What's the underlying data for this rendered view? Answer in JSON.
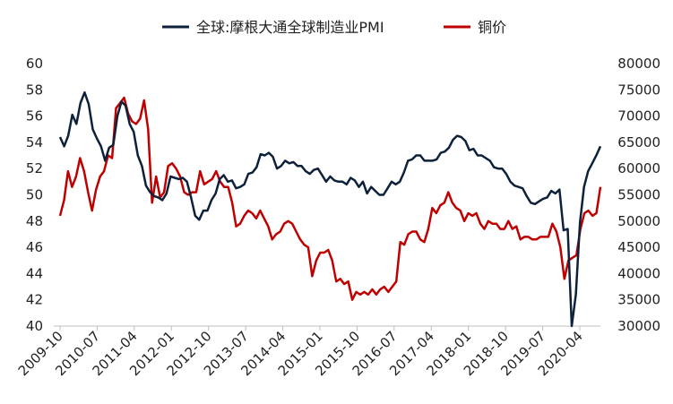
{
  "chart_data": {
    "type": "line",
    "legend_position": "top",
    "grid": false,
    "x_tick_labels": [
      "2009-10",
      "2010-07",
      "2011-04",
      "2012-01",
      "2012-10",
      "2013-07",
      "2014-04",
      "2015-01",
      "2015-10",
      "2016-07",
      "2017-04",
      "2018-01",
      "2018-10",
      "2019-07",
      "2020-04"
    ],
    "x_range": [
      "2009-10",
      "2020-09"
    ],
    "y_left": {
      "range": [
        40,
        60
      ],
      "ticks": [
        40,
        42,
        44,
        46,
        48,
        50,
        52,
        54,
        56,
        58,
        60
      ]
    },
    "y_right": {
      "range": [
        30000,
        80000
      ],
      "ticks": [
        30000,
        35000,
        40000,
        45000,
        50000,
        55000,
        60000,
        65000,
        70000,
        75000,
        80000
      ]
    },
    "series": [
      {
        "name": "全球:摩根大通全球制造业PMI",
        "axis": "left",
        "color": "#0d213a",
        "values": [
          54.4,
          53.7,
          54.5,
          56.1,
          55.4,
          57.0,
          57.8,
          56.9,
          55.0,
          54.3,
          53.7,
          52.6,
          53.6,
          53.8,
          56.0,
          57.1,
          56.8,
          55.4,
          54.8,
          53.0,
          52.2,
          50.7,
          50.2,
          49.9,
          49.8,
          49.6,
          50.1,
          51.4,
          51.3,
          51.2,
          51.3,
          51.0,
          49.8,
          48.4,
          48.1,
          48.8,
          48.8,
          49.6,
          50.1,
          51.2,
          51.5,
          51.0,
          51.1,
          50.5,
          50.6,
          50.8,
          51.6,
          51.7,
          52.1,
          53.1,
          53.0,
          53.2,
          52.9,
          52.0,
          52.2,
          52.6,
          52.4,
          52.5,
          52.2,
          52.2,
          51.8,
          51.6,
          51.9,
          52.0,
          51.5,
          51.0,
          51.4,
          51.1,
          51.0,
          51.0,
          50.8,
          51.3,
          51.1,
          50.6,
          51.0,
          50.1,
          50.6,
          50.3,
          50.0,
          50.0,
          50.5,
          51.0,
          50.8,
          51.0,
          51.7,
          52.6,
          52.7,
          53.0,
          53.0,
          52.6,
          52.6,
          52.6,
          52.7,
          53.2,
          53.3,
          53.6,
          54.2,
          54.5,
          54.4,
          54.1,
          53.4,
          53.5,
          53.0,
          53.0,
          52.8,
          52.6,
          52.1,
          52.0,
          52.0,
          51.6,
          51.0,
          50.7,
          50.6,
          50.5,
          49.9,
          49.4,
          49.3,
          49.5,
          49.7,
          49.8,
          50.3,
          50.1,
          50.4,
          47.3,
          47.4,
          40.0,
          42.4,
          47.9,
          50.6,
          51.8,
          52.4,
          53.0,
          53.7
        ]
      },
      {
        "name": "铜价",
        "axis": "right",
        "color": "#c00000",
        "values": [
          51000,
          54000,
          59500,
          56500,
          58500,
          62000,
          59500,
          55500,
          52000,
          56000,
          58500,
          59500,
          62500,
          62000,
          71500,
          72500,
          73500,
          70500,
          69000,
          68500,
          69500,
          73000,
          67500,
          53500,
          58500,
          54500,
          55500,
          60500,
          61000,
          60000,
          58500,
          55500,
          55000,
          55500,
          55500,
          59500,
          57000,
          57500,
          58000,
          59500,
          57500,
          56500,
          56500,
          53500,
          49000,
          49500,
          51000,
          52000,
          51500,
          50500,
          52000,
          50500,
          49000,
          46500,
          47500,
          48000,
          49500,
          50000,
          49500,
          48000,
          46500,
          45500,
          45000,
          39500,
          42500,
          44000,
          44000,
          44500,
          42500,
          38500,
          39000,
          38000,
          38500,
          35000,
          36500,
          36000,
          36500,
          36000,
          37000,
          36000,
          37000,
          37500,
          36500,
          37500,
          38500,
          46000,
          45500,
          47500,
          48000,
          48000,
          46500,
          46000,
          48500,
          52500,
          51500,
          53000,
          53500,
          55500,
          53500,
          52500,
          52000,
          50000,
          51500,
          51000,
          51500,
          49500,
          48500,
          50000,
          49500,
          49500,
          48500,
          48500,
          50000,
          48500,
          49000,
          46500,
          47000,
          47000,
          46500,
          46500,
          47000,
          47000,
          47000,
          49500,
          48000,
          45000,
          39000,
          42500,
          43000,
          43500,
          48500,
          51500,
          52000,
          51000,
          51500,
          56500
        ]
      }
    ]
  }
}
